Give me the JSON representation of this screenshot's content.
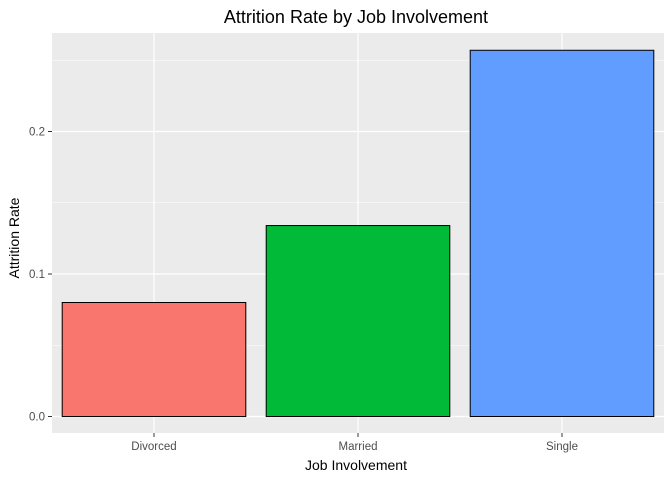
{
  "chart_data": {
    "type": "bar",
    "title": "Attrition Rate by Job Involvement",
    "xlabel": "Job Involvement",
    "ylabel": "Attrition Rate",
    "categories": [
      "Divorced",
      "Married",
      "Single"
    ],
    "values": [
      0.08,
      0.134,
      0.257
    ],
    "colors": [
      "#F8766D",
      "#00BA38",
      "#619CFF"
    ],
    "bar_outline": "#000000",
    "ylim": [
      0,
      0.27
    ],
    "yticks": [
      0.0,
      0.1,
      0.2
    ],
    "ytick_labels": [
      "0.0",
      "0.1",
      "0.2"
    ],
    "grid": true,
    "panel_background": "#EBEBEB",
    "grid_color": "#FFFFFF"
  }
}
